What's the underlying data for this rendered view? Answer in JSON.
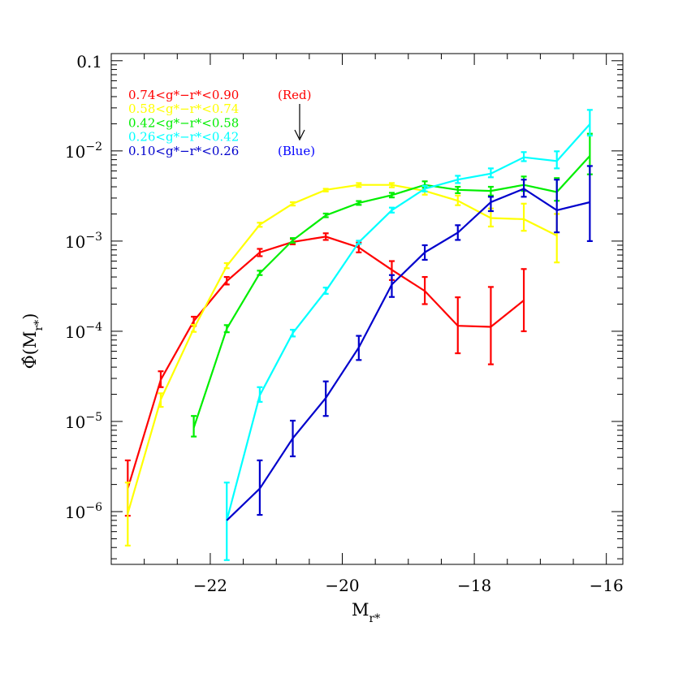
{
  "chart_data": {
    "type": "line",
    "title": "",
    "xlabel": "M",
    "xlabel_sub": "r*",
    "ylabel": "Φ̂(M",
    "ylabel_sub": "r*",
    "ylabel_close": ")",
    "xlim": [
      -23.5,
      -15.75
    ],
    "ylim": [
      2.6e-07,
      0.12
    ],
    "yscale": "log",
    "grid": false,
    "legend_position": "top-left",
    "x_ticks": [
      {
        "value": -22,
        "label": "−22"
      },
      {
        "value": -20,
        "label": "−20"
      },
      {
        "value": -18,
        "label": "−18"
      },
      {
        "value": -16,
        "label": "−16"
      }
    ],
    "y_ticks": [
      {
        "value": 0.1,
        "label": "0.1",
        "base": "",
        "exp": ""
      },
      {
        "value": 0.01,
        "label": "",
        "base": "10",
        "exp": "−2"
      },
      {
        "value": 0.001,
        "label": "",
        "base": "10",
        "exp": "−3"
      },
      {
        "value": 0.0001,
        "label": "",
        "base": "10",
        "exp": "−4"
      },
      {
        "value": 1e-05,
        "label": "",
        "base": "10",
        "exp": "−5"
      },
      {
        "value": 1e-06,
        "label": "",
        "base": "10",
        "exp": "−6"
      }
    ],
    "annotations": {
      "red_label": "(Red)",
      "blue_label": "(Blue)",
      "red_color": "#ff0000",
      "blue_color": "#0000ff",
      "arrow_color": "#000000"
    },
    "series": [
      {
        "name": "0.74<g*−r*<0.90",
        "color": "#ff0000",
        "x": [
          -23.25,
          -22.75,
          -22.25,
          -21.75,
          -21.25,
          -20.75,
          -20.25,
          -19.75,
          -19.25,
          -18.75,
          -18.25,
          -17.75,
          -17.25
        ],
        "y": [
          1.8e-06,
          2.9e-05,
          0.00013,
          0.00036,
          0.00075,
          0.00098,
          0.00112,
          0.00085,
          0.00048,
          0.00028,
          0.000115,
          0.000112,
          0.00022
        ],
        "y_low": [
          9e-07,
          2.4e-05,
          0.000115,
          0.00033,
          0.00068,
          0.00092,
          0.00103,
          0.00075,
          0.00037,
          0.0002,
          5.7e-05,
          4.3e-05,
          0.0001
        ],
        "y_high": [
          3.7e-06,
          3.6e-05,
          0.000145,
          0.0004,
          0.00082,
          0.00106,
          0.00122,
          0.00096,
          0.0006,
          0.0004,
          0.000238,
          0.00031,
          0.00049
        ]
      },
      {
        "name": "0.58<g*−r*<0.74",
        "color": "#ffff00",
        "x": [
          -23.25,
          -22.75,
          -22.25,
          -21.75,
          -21.25,
          -20.75,
          -20.25,
          -19.75,
          -19.25,
          -18.75,
          -18.25,
          -17.75,
          -17.25,
          -16.75
        ],
        "y": [
          9.5e-07,
          1.75e-05,
          0.000107,
          0.00053,
          0.00152,
          0.0026,
          0.0037,
          0.0042,
          0.0042,
          0.0036,
          0.0028,
          0.0018,
          0.00175,
          0.00115
        ],
        "y_low": [
          4.2e-07,
          1.45e-05,
          9.85e-05,
          0.0005,
          0.00144,
          0.00248,
          0.00355,
          0.00398,
          0.00395,
          0.00327,
          0.0025,
          0.00145,
          0.0013,
          0.00058
        ],
        "y_high": [
          2.1e-06,
          2.05e-05,
          0.000118,
          0.00057,
          0.0016,
          0.0027,
          0.0038,
          0.0044,
          0.0044,
          0.0039,
          0.0032,
          0.0023,
          0.0026,
          0.002
        ]
      },
      {
        "name": "0.42<g*−r*<0.58",
        "color": "#00ee00",
        "x": [
          -22.25,
          -21.75,
          -21.25,
          -20.75,
          -20.25,
          -19.75,
          -19.25,
          -18.75,
          -18.25,
          -17.75,
          -17.25,
          -16.75,
          -16.25
        ],
        "y": [
          8.5e-06,
          0.000107,
          0.00044,
          0.00102,
          0.00193,
          0.00265,
          0.00323,
          0.0042,
          0.0037,
          0.0036,
          0.0042,
          0.0035,
          0.0088
        ],
        "y_low": [
          6.8e-06,
          9.75e-05,
          0.00042,
          0.00096,
          0.00184,
          0.00252,
          0.00305,
          0.0039,
          0.0034,
          0.0032,
          0.0036,
          0.0028,
          0.0055
        ],
        "y_high": [
          1.15e-05,
          0.000117,
          0.00047,
          0.00108,
          0.00202,
          0.00278,
          0.00343,
          0.0046,
          0.004,
          0.004,
          0.0052,
          0.005,
          0.0155
        ]
      },
      {
        "name": "0.26<g*−r*<0.42",
        "color": "#00ffff",
        "x": [
          -21.75,
          -21.25,
          -20.75,
          -20.25,
          -19.75,
          -19.25,
          -18.75,
          -18.25,
          -17.75,
          -17.25,
          -16.75,
          -16.25
        ],
        "y": [
          8e-07,
          1.95e-05,
          9.55e-05,
          0.00028,
          0.00097,
          0.0022,
          0.0038,
          0.0048,
          0.0056,
          0.0085,
          0.0077,
          0.0198
        ],
        "y_low": [
          2.9e-07,
          1.65e-05,
          8.75e-05,
          0.00026,
          0.00093,
          0.00207,
          0.00355,
          0.0044,
          0.0051,
          0.0077,
          0.0064,
          0.0148
        ],
        "y_high": [
          2.1e-06,
          2.4e-05,
          0.000104,
          0.000305,
          0.00101,
          0.00235,
          0.0041,
          0.0053,
          0.0064,
          0.0097,
          0.0099,
          0.0285
        ]
      },
      {
        "name": "0.10<g*−r*<0.26",
        "color": "#0000cc",
        "x": [
          -21.75,
          -21.25,
          -20.75,
          -20.25,
          -19.75,
          -19.25,
          -18.75,
          -18.25,
          -17.75,
          -17.25,
          -16.75,
          -16.25
        ],
        "y": [
          8e-07,
          1.8e-06,
          6.5e-06,
          1.82e-05,
          6.6e-05,
          0.00033,
          0.00075,
          0.00124,
          0.0027,
          0.0038,
          0.0022,
          0.0027
        ],
        "y_low": null,
        "y_high": [
          null,
          3.7e-06,
          1.02e-05,
          2.78e-05,
          8.9e-05,
          0.00042,
          0.0009,
          0.0015,
          0.0031,
          0.0048,
          0.0048,
          0.0068
        ],
        "y_low_vals": [
          null,
          9.2e-07,
          4.1e-06,
          1.15e-05,
          4.8e-05,
          0.00024,
          0.00062,
          0.00103,
          0.00215,
          0.0031,
          0.00125,
          0.001
        ]
      }
    ]
  }
}
